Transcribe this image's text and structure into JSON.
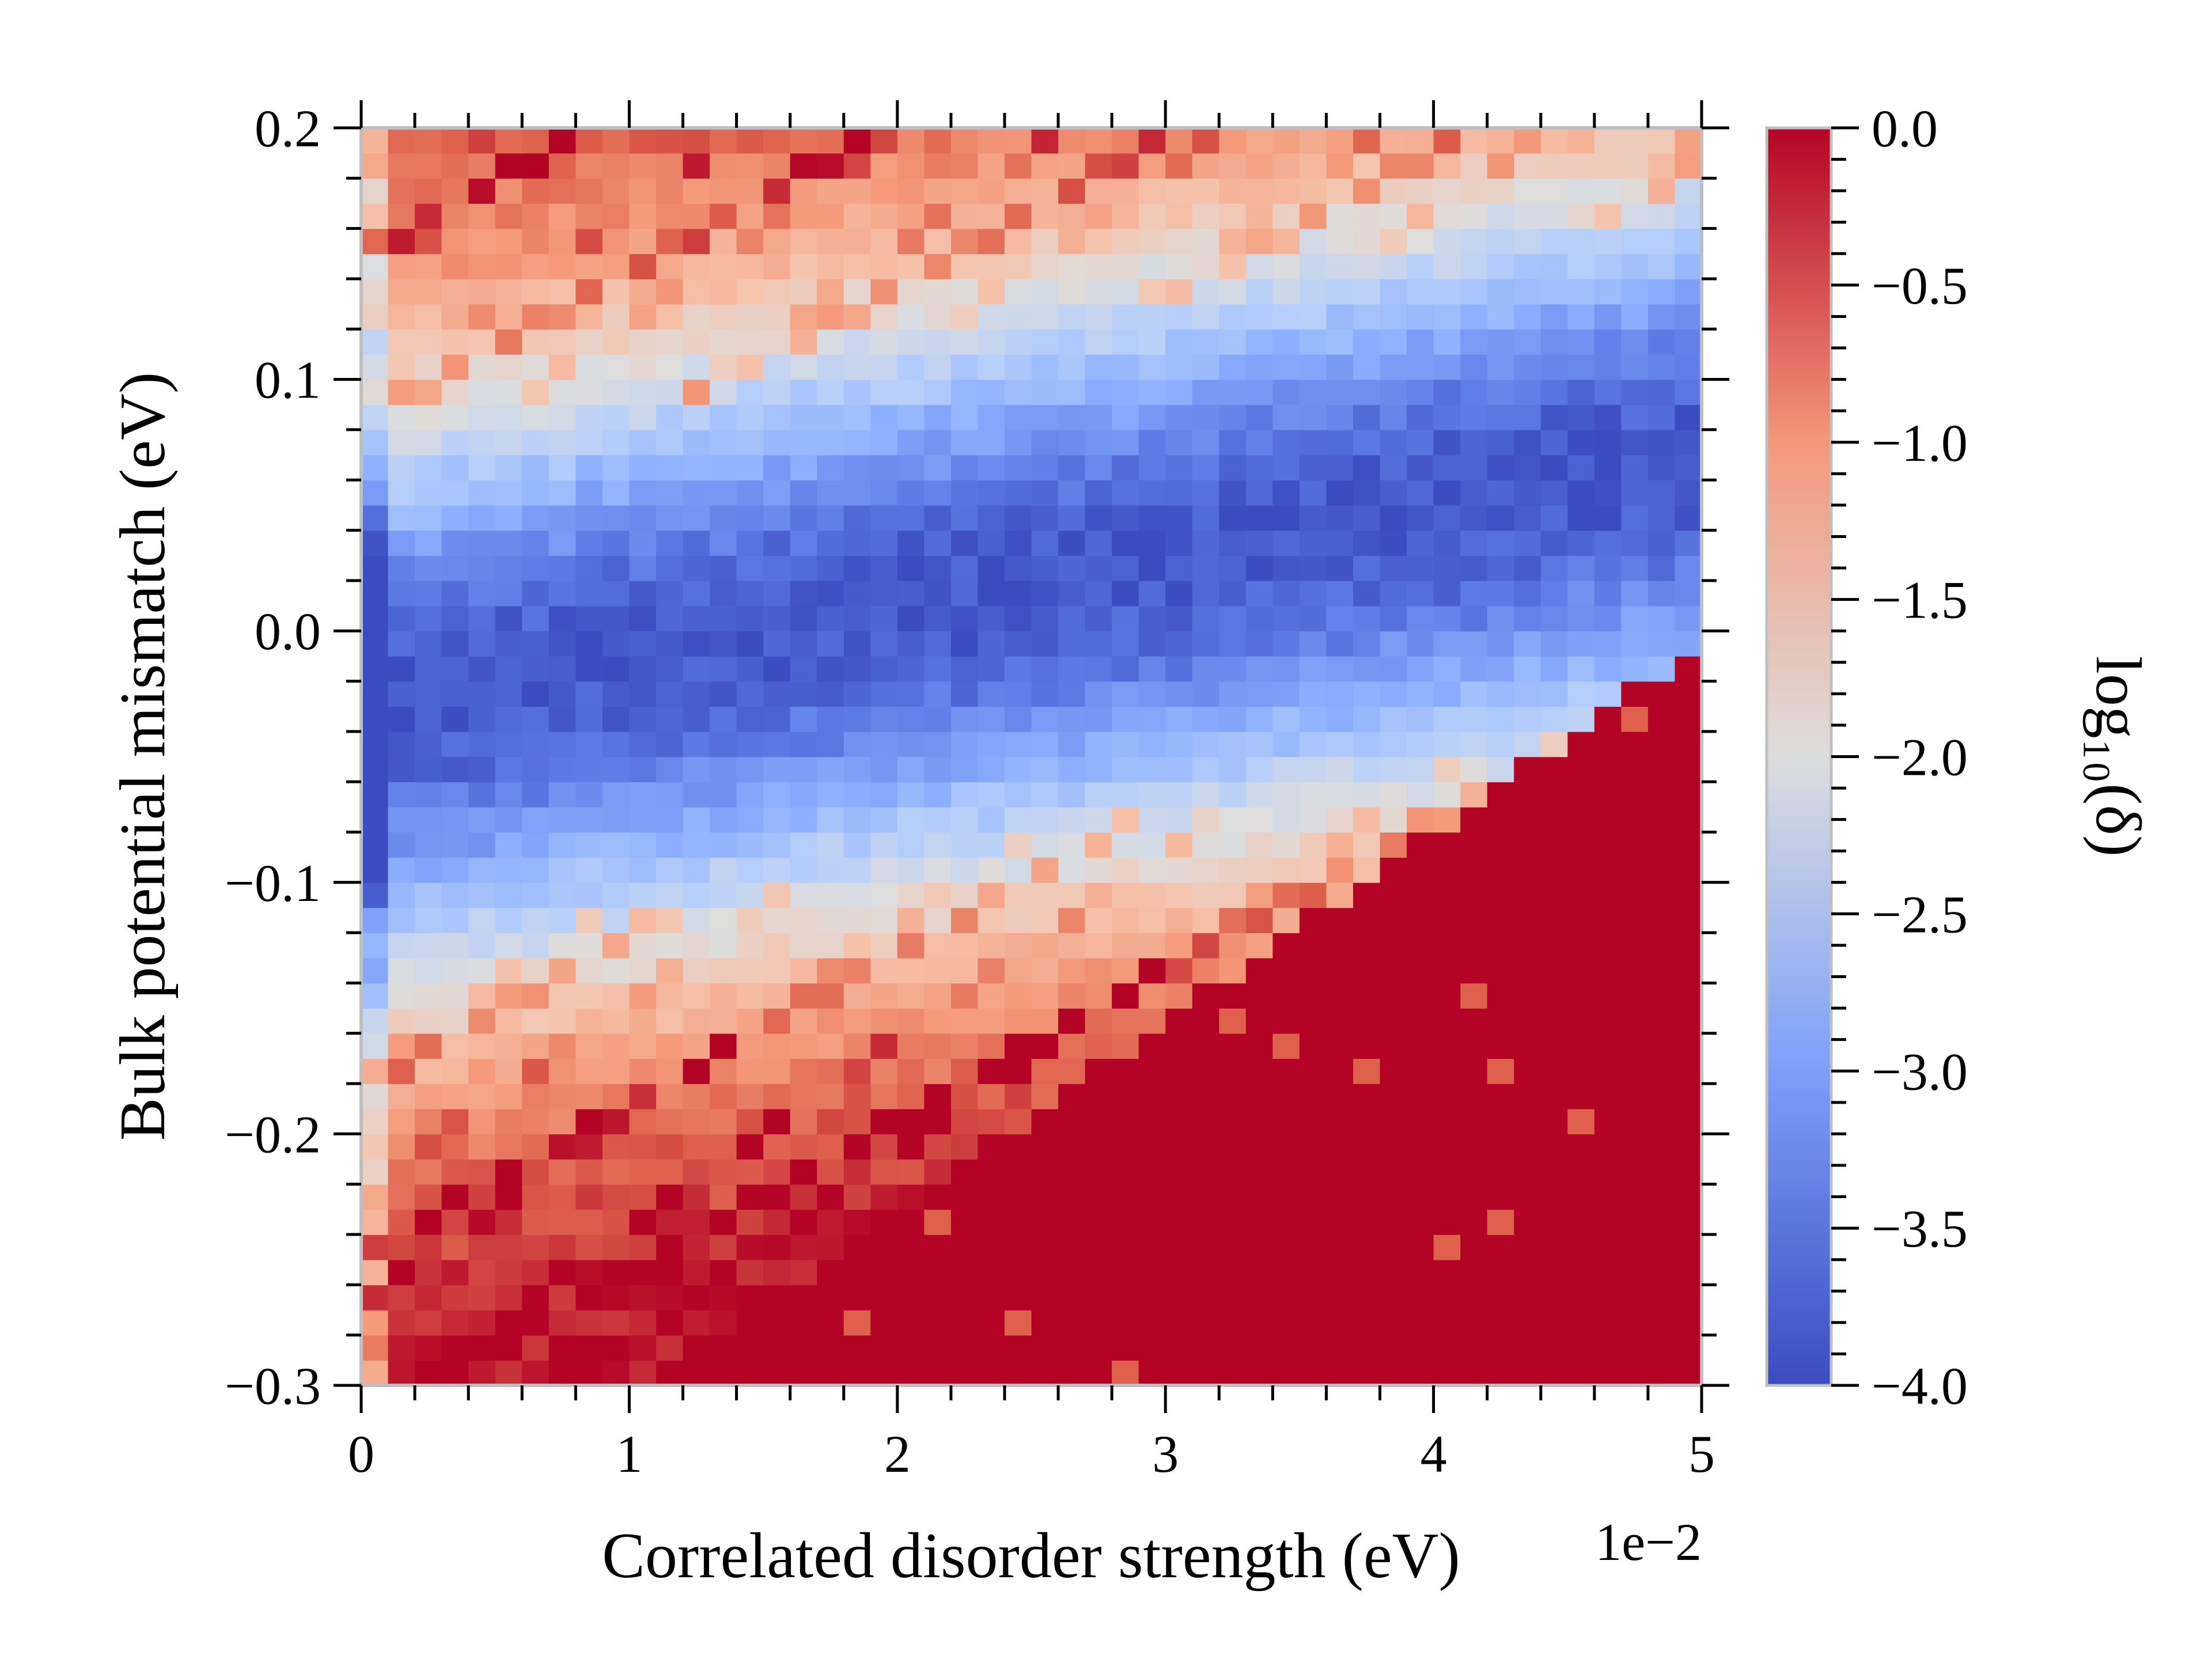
{
  "chart_data": {
    "type": "heatmap",
    "title": "",
    "xlabel": "Correlated disorder strength (eV)",
    "ylabel": "Bulk potential mismatch (eV)",
    "x_offset_label": "1e−2",
    "xlim": [
      0,
      5
    ],
    "ylim": [
      -0.3,
      0.2
    ],
    "x_ticks": [
      0,
      1,
      2,
      3,
      4,
      5
    ],
    "x_tick_labels": [
      "0",
      "1",
      "2",
      "3",
      "4",
      "5"
    ],
    "y_ticks": [
      -0.3,
      -0.2,
      -0.1,
      0.0,
      0.1,
      0.2
    ],
    "y_tick_labels": [
      "−0.3",
      "−0.2",
      "−0.1",
      "0.0",
      "0.1",
      "0.2"
    ],
    "grid": false,
    "colormap": "coolwarm",
    "colorbar": {
      "label": "log₁₀(δ)",
      "range": [
        -4.0,
        0.0
      ],
      "ticks": [
        0.0,
        -0.5,
        -1.0,
        -1.5,
        -2.0,
        -2.5,
        -3.0,
        -3.5,
        -4.0
      ],
      "tick_labels": [
        "0.0",
        "−0.5",
        "−1.0",
        "−1.5",
        "−2.0",
        "−2.5",
        "−3.0",
        "−3.5",
        "−4.0"
      ]
    },
    "grid_resolution": {
      "nx": 50,
      "ny": 50
    },
    "features": {
      "min_valley": {
        "description": "blue low-value valley",
        "y_at_x0": -0.03,
        "slope_y_per_x": 0.02,
        "min_value": -3.9
      },
      "saturated_region": {
        "description": "value 0.0 below boundary",
        "boundary_y_at_x0": -0.38,
        "boundary_slope": 0.075,
        "value": 0.0
      }
    }
  }
}
